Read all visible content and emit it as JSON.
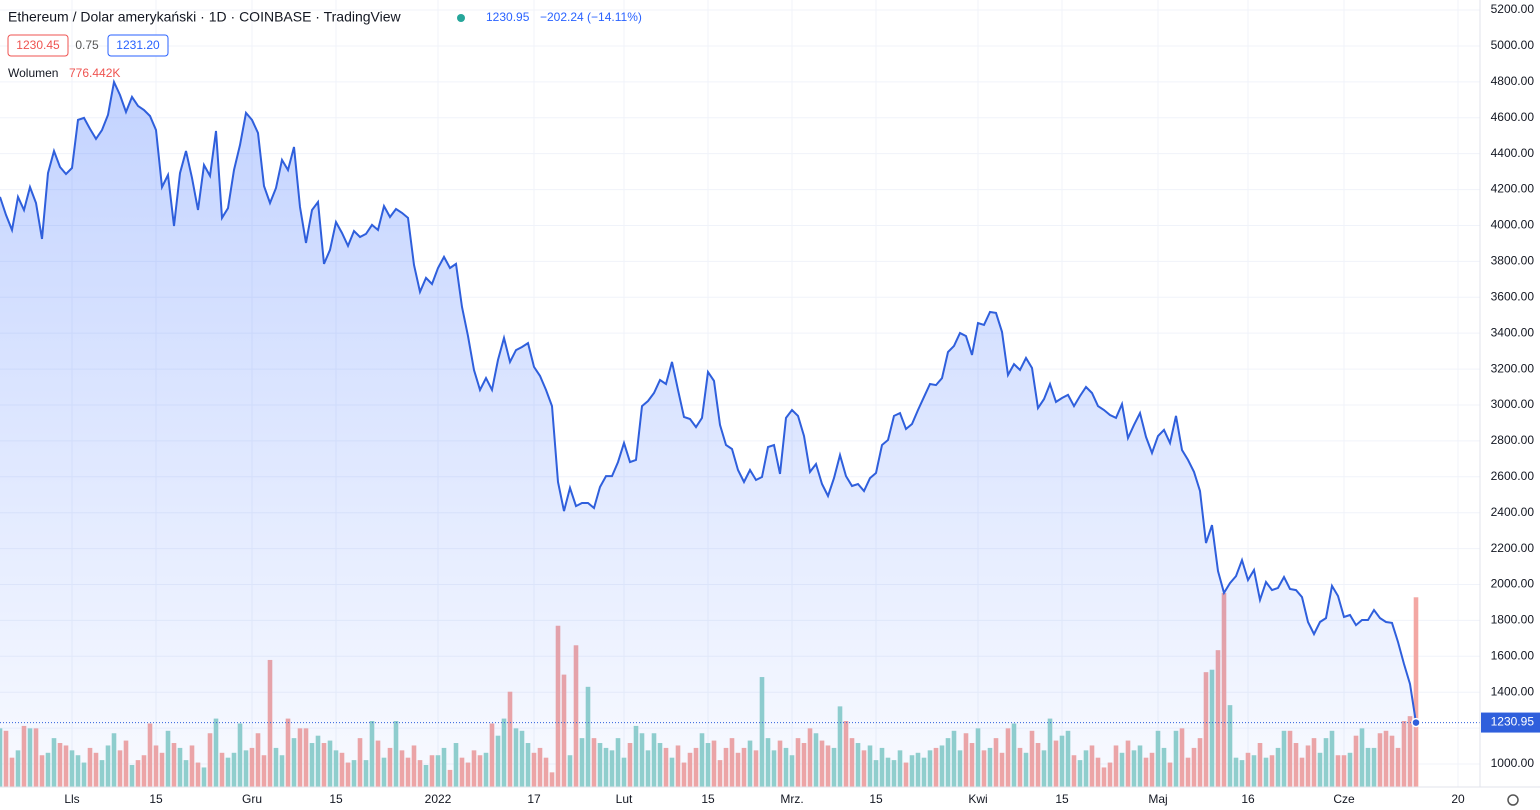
{
  "header": {
    "title": "Ethereum / Dolar amerykański · 1D · COINBASE · TradingView",
    "change": "−202.24 (−14.11%)",
    "bid": "1230.45",
    "spread": "0.75",
    "ask": "1231.20",
    "volume_title": "Wolumen"
  },
  "chart_data": {
    "type": "line",
    "xlim": [
      0,
      246
    ],
    "xticks": [
      {
        "value": 12,
        "label": "Lls"
      },
      {
        "value": 26,
        "label": "15"
      },
      {
        "value": 42,
        "label": "Gru"
      },
      {
        "value": 56,
        "label": "15"
      },
      {
        "value": 73,
        "label": "2022"
      },
      {
        "value": 89,
        "label": "17"
      },
      {
        "value": 104,
        "label": "Lut"
      },
      {
        "value": 118,
        "label": "15"
      },
      {
        "value": 132,
        "label": "Mrz."
      },
      {
        "value": 146,
        "label": "15"
      },
      {
        "value": 163,
        "label": "Kwi"
      },
      {
        "value": 177,
        "label": "15"
      },
      {
        "value": 193,
        "label": "Maj"
      },
      {
        "value": 208,
        "label": "16"
      },
      {
        "value": 224,
        "label": "Cze"
      },
      {
        "value": 243,
        "label": "20"
      }
    ],
    "ylim": [
      872,
      5256
    ],
    "yticks": [
      {
        "value": 1000,
        "label": "1000.00"
      },
      {
        "value": 1200,
        "label": "1200.00"
      },
      {
        "value": 1400,
        "label": "1400.00"
      },
      {
        "value": 1600,
        "label": "1600.00"
      },
      {
        "value": 1800,
        "label": "1800.00"
      },
      {
        "value": 2000,
        "label": "2000.00"
      },
      {
        "value": 2200,
        "label": "2200.00"
      },
      {
        "value": 2400,
        "label": "2400.00"
      },
      {
        "value": 2600,
        "label": "2600.00"
      },
      {
        "value": 2800,
        "label": "2800.00"
      },
      {
        "value": 3000,
        "label": "3000.00"
      },
      {
        "value": 3200,
        "label": "3200.00"
      },
      {
        "value": 3400,
        "label": "3400.00"
      },
      {
        "value": 3600,
        "label": "3600.00"
      },
      {
        "value": 3800,
        "label": "3800.00"
      },
      {
        "value": 4000,
        "label": "4000.00"
      },
      {
        "value": 4200,
        "label": "4200.00"
      },
      {
        "value": 4400,
        "label": "4400.00"
      },
      {
        "value": 4600,
        "label": "4600.00"
      },
      {
        "value": 4800,
        "label": "4800.00"
      },
      {
        "value": 5000,
        "label": "5000.00"
      },
      {
        "value": 5200,
        "label": "5200.00"
      }
    ],
    "grid": true,
    "series": [
      {
        "color": "#2f5fdc",
        "values": [
          4159,
          4059,
          3975,
          4159,
          4086,
          4214,
          4125,
          3925,
          4292,
          4415,
          4326,
          4287,
          4320,
          4588,
          4599,
          4538,
          4482,
          4532,
          4616,
          4799,
          4727,
          4632,
          4716,
          4666,
          4643,
          4610,
          4532,
          4214,
          4281,
          3997,
          4292,
          4415,
          4265,
          4086,
          4337,
          4276,
          4526,
          4042,
          4097,
          4309,
          4448,
          4627,
          4588,
          4515,
          4220,
          4125,
          4209,
          4365,
          4309,
          4437,
          4103,
          3903,
          4086,
          4131,
          3786,
          3864,
          4019,
          3958,
          3886,
          3969,
          3936,
          3953,
          4003,
          3975,
          4108,
          4047,
          4092,
          4070,
          4042,
          3780,
          3630,
          3708,
          3674,
          3763,
          3825,
          3763,
          3786,
          3546,
          3384,
          3195,
          3084,
          3150,
          3084,
          3251,
          3373,
          3240,
          3306,
          3323,
          3345,
          3212,
          3162,
          3084,
          2994,
          2571,
          2409,
          2538,
          2437,
          2454,
          2454,
          2426,
          2543,
          2604,
          2604,
          2682,
          2788,
          2682,
          2694,
          2994,
          3022,
          3067,
          3139,
          3117,
          3240,
          3084,
          2933,
          2922,
          2877,
          2928,
          3184,
          3134,
          2889,
          2777,
          2755,
          2638,
          2571,
          2638,
          2582,
          2599,
          2766,
          2777,
          2616,
          2928,
          2972,
          2939,
          2827,
          2627,
          2671,
          2560,
          2493,
          2593,
          2721,
          2604,
          2549,
          2560,
          2521,
          2593,
          2621,
          2777,
          2805,
          2939,
          2955,
          2866,
          2894,
          2972,
          3045,
          3117,
          3111,
          3150,
          3295,
          3329,
          3401,
          3384,
          3279,
          3457,
          3446,
          3518,
          3513,
          3407,
          3167,
          3228,
          3195,
          3262,
          3206,
          2983,
          3033,
          3117,
          3017,
          3039,
          3056,
          2994,
          3050,
          3100,
          3067,
          2994,
          2972,
          2944,
          2928,
          3005,
          2816,
          2889,
          2955,
          2822,
          2733,
          2827,
          2861,
          2788,
          2939,
          2749,
          2694,
          2627,
          2521,
          2231,
          2331,
          2075,
          1953,
          2008,
          2047,
          2136,
          2025,
          2081,
          1914,
          2014,
          1969,
          1981,
          2042,
          1975,
          1969,
          1930,
          1791,
          1724,
          1791,
          1813,
          1992,
          1936,
          1819,
          1830,
          1774,
          1802,
          1802,
          1858,
          1813,
          1791,
          1786,
          1680,
          1557,
          1446,
          1230.95
        ]
      }
    ],
    "volume": {
      "up_color": "#93d2cb",
      "down_color": "#f3a7a3",
      "values": [
        240000,
        230000,
        120000,
        150000,
        250000,
        240000,
        240000,
        130000,
        140000,
        200000,
        180000,
        170000,
        150000,
        130000,
        100000,
        160000,
        140000,
        110000,
        170000,
        220000,
        150000,
        190000,
        90000,
        110000,
        130000,
        260000,
        170000,
        140000,
        230000,
        180000,
        160000,
        110000,
        170000,
        100000,
        80000,
        220000,
        280000,
        140000,
        120000,
        140000,
        260000,
        150000,
        160000,
        220000,
        130000,
        520000,
        160000,
        130000,
        280000,
        200000,
        240000,
        240000,
        180000,
        210000,
        180000,
        190000,
        150000,
        140000,
        100000,
        110000,
        200000,
        110000,
        270000,
        190000,
        120000,
        160000,
        270000,
        150000,
        120000,
        170000,
        110000,
        90000,
        130000,
        130000,
        160000,
        70000,
        180000,
        120000,
        100000,
        150000,
        130000,
        140000,
        260000,
        210000,
        280000,
        390000,
        240000,
        230000,
        180000,
        140000,
        160000,
        120000,
        60000,
        660000,
        460000,
        130000,
        580000,
        200000,
        410000,
        200000,
        180000,
        160000,
        150000,
        200000,
        120000,
        180000,
        250000,
        220000,
        150000,
        220000,
        180000,
        160000,
        120000,
        170000,
        100000,
        140000,
        160000,
        220000,
        180000,
        190000,
        110000,
        160000,
        200000,
        140000,
        160000,
        190000,
        150000,
        450000,
        200000,
        150000,
        190000,
        160000,
        130000,
        200000,
        180000,
        240000,
        220000,
        190000,
        170000,
        160000,
        330000,
        270000,
        200000,
        180000,
        150000,
        170000,
        110000,
        160000,
        120000,
        110000,
        150000,
        100000,
        130000,
        140000,
        120000,
        150000,
        160000,
        170000,
        200000,
        230000,
        150000,
        220000,
        180000,
        240000,
        150000,
        160000,
        200000,
        140000,
        240000,
        260000,
        160000,
        140000,
        230000,
        180000,
        150000,
        280000,
        190000,
        210000,
        230000,
        130000,
        110000,
        150000,
        170000,
        120000,
        80000,
        100000,
        170000,
        140000,
        190000,
        150000,
        170000,
        120000,
        140000,
        230000,
        160000,
        100000,
        230000,
        240000,
        120000,
        160000,
        200000,
        470000,
        480000,
        560000,
        794000,
        335000,
        120000,
        110000,
        140000,
        130000,
        180000,
        120000,
        130000,
        160000,
        230000,
        230000,
        180000,
        120000,
        170000,
        200000,
        140000,
        200000,
        230000,
        130000,
        130000,
        140000,
        210000,
        240000,
        160000,
        160000,
        220000,
        230000,
        210000,
        160000,
        270000,
        290000,
        776442
      ],
      "value_labels": {
        "236": "776.442K"
      }
    }
  }
}
